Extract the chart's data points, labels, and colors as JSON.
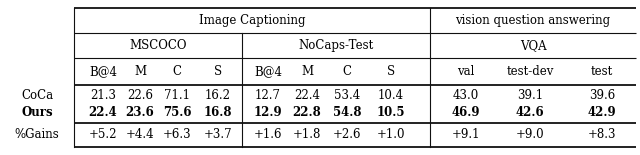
{
  "img_cap_label": "Image Captioning",
  "vqa_label": "vision question answering",
  "mscoco_label": "MSCOCO",
  "nocaps_label": "NoCaps-Test",
  "vqa2_label": "VQA",
  "col_headers": [
    "B@4",
    "M",
    "C",
    "S",
    "B@4",
    "M",
    "C",
    "S",
    "val",
    "test-dev",
    "test"
  ],
  "row_labels": [
    "CoCa",
    "Ours",
    "%Gains"
  ],
  "row_data": [
    [
      "21.3",
      "22.6",
      "71.1",
      "16.2",
      "12.7",
      "22.4",
      "53.4",
      "10.4",
      "43.0",
      "39.1",
      "39.6"
    ],
    [
      "22.4",
      "23.6",
      "75.6",
      "16.8",
      "12.9",
      "22.8",
      "54.8",
      "10.5",
      "46.9",
      "42.6",
      "42.9"
    ],
    [
      "+5.2",
      "+4.4",
      "+6.3",
      "+3.7",
      "+1.6",
      "+1.8",
      "+2.6",
      "+1.0",
      "+9.1",
      "+9.0",
      "+8.3"
    ]
  ],
  "row_bold": [
    false,
    true,
    false
  ],
  "figsize": [
    6.4,
    1.55
  ],
  "dpi": 100
}
